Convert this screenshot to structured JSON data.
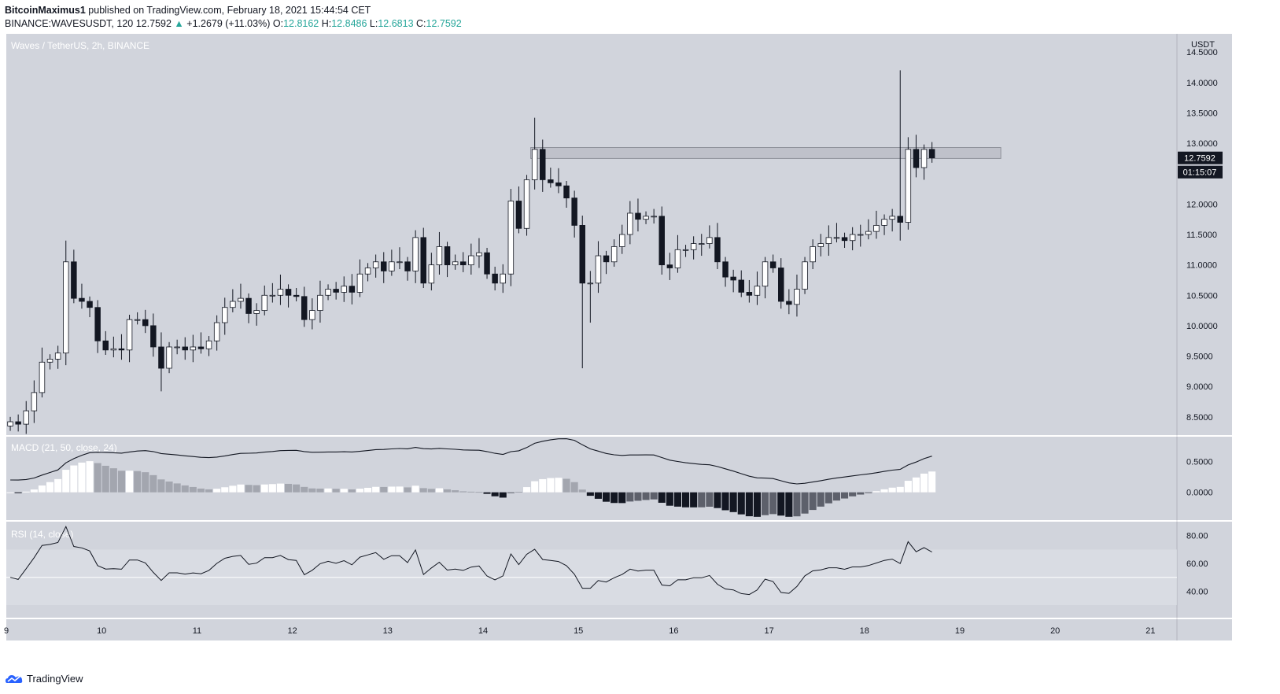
{
  "header": {
    "author": "BitcoinMaximus1",
    "published_text": "published on TradingView.com, February 18, 2021 15:44:54 CET",
    "symbol": "BINANCE:WAVESUSDT, 120",
    "last": "12.7592",
    "change": "+1.2679 (+11.03%)",
    "o_label": "O:",
    "o": "12.8162",
    "h_label": "H:",
    "h": "12.8486",
    "l_label": "L:",
    "l": "12.6813",
    "c_label": "C:",
    "c": "12.7592"
  },
  "footer": {
    "brand": "TradingView"
  },
  "colors": {
    "pane_bg": "#d1d4dc",
    "up": "#ffffff",
    "down": "#131722",
    "accent": "#26a69a"
  },
  "chart_data": [
    {
      "type": "candlestick",
      "title": "Waves / TetherUS, 2h, BINANCE",
      "y_unit": "USDT",
      "ylim": [
        8.2,
        14.8
      ],
      "yticks": [
        "8.5000",
        "9.0000",
        "9.5000",
        "10.0000",
        "10.5000",
        "11.0000",
        "11.5000",
        "12.0000",
        "12.5000",
        "13.0000",
        "13.5000",
        "14.0000",
        "14.5000"
      ],
      "x_ticks": [
        "9",
        "10",
        "11",
        "12",
        "13",
        "14",
        "15",
        "16",
        "17",
        "18",
        "19",
        "20",
        "21"
      ],
      "last_price_label": "12.7592",
      "countdown_label": "01:15:07",
      "resistance_zone": [
        12.75,
        12.93
      ],
      "closes": [
        8.42,
        8.38,
        8.6,
        8.9,
        9.4,
        9.45,
        9.55,
        11.05,
        10.45,
        10.4,
        10.3,
        9.75,
        9.6,
        9.62,
        9.6,
        10.1,
        10.1,
        10.0,
        9.65,
        9.3,
        9.65,
        9.65,
        9.6,
        9.65,
        9.62,
        9.75,
        10.05,
        10.3,
        10.4,
        10.45,
        10.2,
        10.25,
        10.5,
        10.5,
        10.6,
        10.5,
        10.48,
        10.1,
        10.25,
        10.5,
        10.6,
        10.55,
        10.65,
        10.55,
        10.85,
        10.95,
        11.05,
        10.9,
        11.05,
        11.05,
        10.9,
        11.45,
        10.7,
        11.0,
        11.3,
        11.0,
        11.05,
        11.0,
        11.15,
        11.2,
        10.85,
        10.7,
        10.85,
        12.05,
        11.6,
        12.4,
        12.9,
        12.4,
        12.35,
        12.3,
        12.1,
        11.65,
        10.7,
        10.7,
        11.15,
        11.05,
        11.3,
        11.5,
        11.85,
        11.75,
        11.8,
        11.8,
        11.0,
        10.95,
        11.25,
        11.25,
        11.35,
        11.35,
        11.45,
        11.05,
        10.8,
        10.75,
        10.55,
        10.5,
        10.65,
        11.05,
        10.95,
        10.4,
        10.35,
        10.6,
        11.05,
        11.3,
        11.35,
        11.45,
        11.45,
        11.4,
        11.5,
        11.5,
        11.55,
        11.65,
        11.75,
        11.8,
        11.7,
        12.9,
        12.6,
        12.9,
        12.76
      ],
      "highs_hint": {
        "spike_high": 14.2,
        "spike_low": 9.3
      }
    },
    {
      "type": "macd",
      "label": "MACD (21, 50, close, 24)",
      "ylim": [
        -0.45,
        0.9
      ],
      "yticks": [
        "0.0000",
        "0.5000"
      ]
    },
    {
      "type": "rsi",
      "label": "RSI (14, close)",
      "ylim": [
        21.0,
        90.0
      ],
      "yticks": [
        "40.00",
        "60.00",
        "80.00"
      ],
      "band": [
        30,
        70
      ],
      "mid": 50
    }
  ]
}
